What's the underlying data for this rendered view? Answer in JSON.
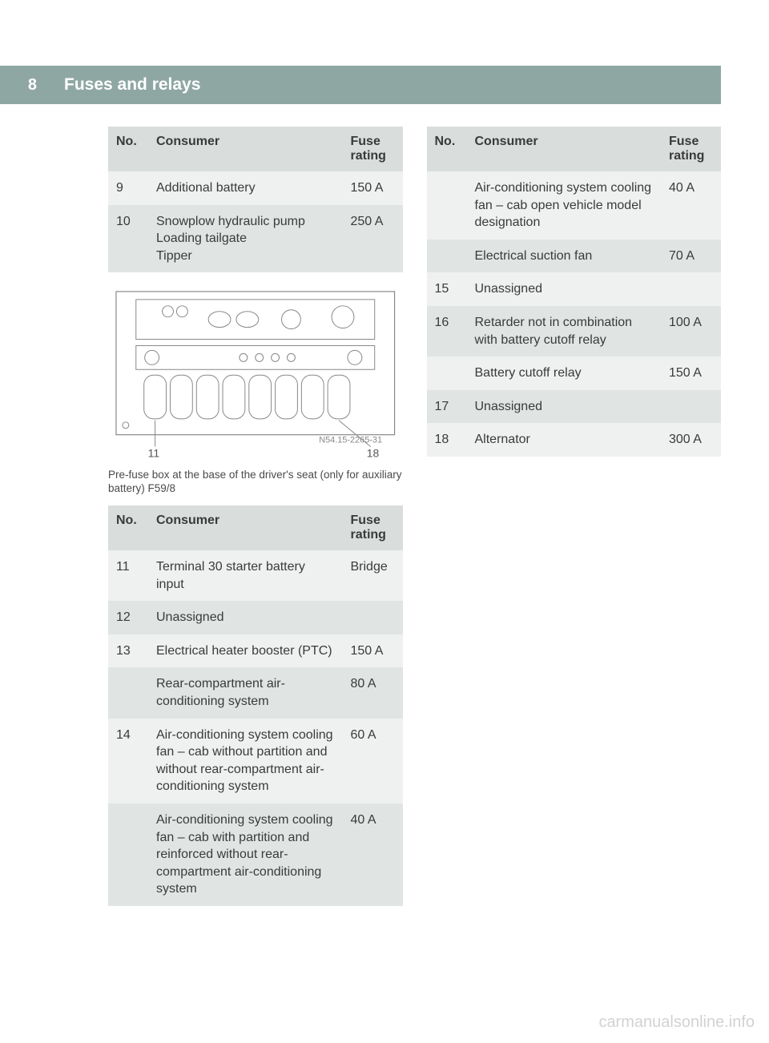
{
  "page_number": "8",
  "header_title": "Fuses and relays",
  "table1": {
    "columns": [
      "No.",
      "Consumer",
      "Fuse rating"
    ],
    "rows": [
      {
        "no": "9",
        "consumer": "Additional battery",
        "rating": "150 A"
      },
      {
        "no": "10",
        "consumer": "Snowplow hydraulic pump\nLoading tailgate\nTipper",
        "rating": "250 A"
      }
    ]
  },
  "diagram": {
    "caption": "Pre-fuse box at the base of the driver's seat (only for auxiliary battery) F59/8",
    "left_label": "11",
    "right_label": "18",
    "code": "N54.15-2265-31"
  },
  "table2": {
    "columns": [
      "No.",
      "Consumer",
      "Fuse rating"
    ],
    "rows": [
      {
        "no": "11",
        "consumer": "Terminal 30 starter battery input",
        "rating": "Bridge"
      },
      {
        "no": "12",
        "consumer": "Unassigned",
        "rating": ""
      },
      {
        "no": "13",
        "consumer": "Electrical heater booster (PTC)",
        "rating": "150 A"
      },
      {
        "no": "",
        "consumer": "Rear-compartment air-conditioning system",
        "rating": "80 A"
      },
      {
        "no": "14",
        "consumer": "Air-conditioning system cooling fan – cab without partition and without rear-compartment air-conditioning system",
        "rating": "60 A"
      },
      {
        "no": "",
        "consumer": "Air-conditioning system cooling fan – cab with partition and reinforced without rear-compartment air-conditioning system",
        "rating": "40 A"
      }
    ]
  },
  "table3": {
    "columns": [
      "No.",
      "Consumer",
      "Fuse rating"
    ],
    "rows": [
      {
        "no": "",
        "consumer": "Air-conditioning system cooling fan – cab open vehicle model designation",
        "rating": "40 A"
      },
      {
        "no": "",
        "consumer": "Electrical suction fan",
        "rating": "70 A"
      },
      {
        "no": "15",
        "consumer": "Unassigned",
        "rating": ""
      },
      {
        "no": "16",
        "consumer": "Retarder not in combination with battery cutoff relay",
        "rating": "100 A"
      },
      {
        "no": "",
        "consumer": "Battery cutoff relay",
        "rating": "150 A"
      },
      {
        "no": "17",
        "consumer": "Unassigned",
        "rating": ""
      },
      {
        "no": "18",
        "consumer": "Alternator",
        "rating": "300 A"
      }
    ]
  },
  "watermark": "carmanualsonline.info",
  "colors": {
    "header_bg": "#8fa7a3",
    "th_bg": "#d9dedd",
    "row_odd": "#eef1f0",
    "row_even": "#e0e5e4",
    "text": "#3a3a3a"
  }
}
